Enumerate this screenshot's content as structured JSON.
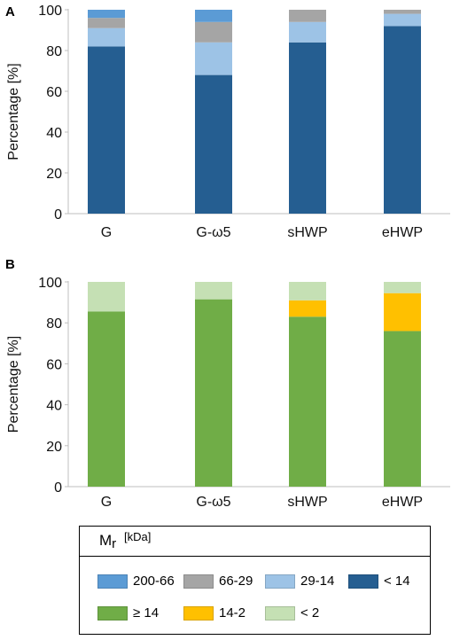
{
  "chart_data": [
    {
      "panel": "A",
      "type": "bar",
      "stacked": true,
      "ylabel": "Percentage [%]",
      "ylim": [
        0,
        100
      ],
      "yticks": [
        0,
        20,
        40,
        60,
        80,
        100
      ],
      "categories": [
        "G",
        "G-ω5",
        "sHWP",
        "eHWP"
      ],
      "series": [
        {
          "name": "< 14",
          "color": "#255e91",
          "values": [
            82,
            68,
            84,
            92
          ]
        },
        {
          "name": "29-14",
          "color": "#9dc3e6",
          "values": [
            9,
            16,
            10,
            6
          ]
        },
        {
          "name": "66-29",
          "color": "#a5a5a5",
          "values": [
            5,
            10,
            6,
            2
          ]
        },
        {
          "name": "200-66",
          "color": "#5b9bd5",
          "values": [
            4,
            6,
            0,
            0
          ]
        }
      ]
    },
    {
      "panel": "B",
      "type": "bar",
      "stacked": true,
      "ylabel": "Percentage [%]",
      "ylim": [
        0,
        100
      ],
      "yticks": [
        0,
        20,
        40,
        60,
        80,
        100
      ],
      "categories": [
        "G",
        "G-ω5",
        "sHWP",
        "eHWP"
      ],
      "series": [
        {
          "name": "≥ 14",
          "color": "#70ad47",
          "values": [
            85.5,
            91.5,
            83,
            76
          ]
        },
        {
          "name": "14-2",
          "color": "#ffc000",
          "values": [
            0,
            0,
            8,
            18.5
          ]
        },
        {
          "name": "< 2",
          "color": "#c5e0b4",
          "values": [
            14.5,
            8.5,
            9,
            5.5
          ]
        }
      ]
    }
  ],
  "legend": {
    "title_main": "M",
    "title_sub": "r",
    "title_unit": "[kDa]",
    "items": [
      {
        "label": "200-66",
        "color": "#5b9bd5"
      },
      {
        "label": "66-29",
        "color": "#a5a5a5"
      },
      {
        "label": "29-14",
        "color": "#9dc3e6"
      },
      {
        "label": "< 14",
        "color": "#255e91"
      },
      {
        "label": "≥ 14",
        "color": "#70ad47"
      },
      {
        "label": "14-2",
        "color": "#ffc000"
      },
      {
        "label": "< 2",
        "color": "#c5e0b4"
      }
    ]
  }
}
